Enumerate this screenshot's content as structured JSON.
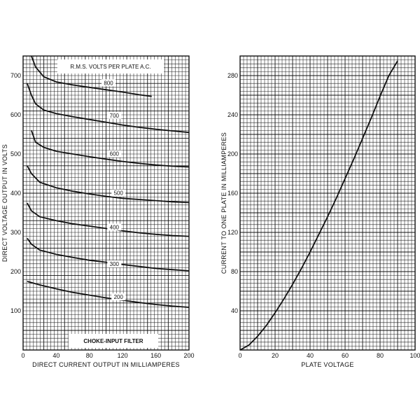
{
  "chart_data": [
    {
      "type": "line",
      "id": "left",
      "xlabel": "DIRECT CURRENT OUTPUT IN MILLIAMPERES",
      "ylabel": "DIRECT VOLTAGE OUTPUT IN VOLTS",
      "xlim": [
        0,
        200
      ],
      "ylim": [
        0,
        750
      ],
      "xticks": [
        0,
        40,
        80,
        120,
        160,
        200
      ],
      "yticks": [
        100,
        200,
        300,
        400,
        500,
        600,
        700
      ],
      "legend_title": "R.M.S. VOLTS PER PLATE A.C.",
      "footer_label": "CHOKE-INPUT FILTER",
      "grid": true,
      "series": [
        {
          "name": "800",
          "label_at": [
            103,
            678
          ],
          "points": [
            [
              10,
              750
            ],
            [
              15,
              722
            ],
            [
              25,
              697
            ],
            [
              40,
              684
            ],
            [
              60,
              676
            ],
            [
              80,
              670
            ],
            [
              100,
              664
            ],
            [
              120,
              658
            ],
            [
              140,
              651
            ],
            [
              155,
              647
            ]
          ]
        },
        {
          "name": "700",
          "label_at": [
            110,
            595
          ],
          "points": [
            [
              5,
              680
            ],
            [
              10,
              650
            ],
            [
              15,
              628
            ],
            [
              25,
              612
            ],
            [
              40,
              603
            ],
            [
              60,
              595
            ],
            [
              80,
              588
            ],
            [
              100,
              581
            ],
            [
              120,
              574
            ],
            [
              140,
              568
            ],
            [
              160,
              563
            ],
            [
              180,
              559
            ],
            [
              200,
              555
            ]
          ]
        },
        {
          "name": "600",
          "label_at": [
            110,
            497
          ],
          "points": [
            [
              10,
              560
            ],
            [
              15,
              530
            ],
            [
              25,
              517
            ],
            [
              40,
              507
            ],
            [
              60,
              500
            ],
            [
              80,
              493
            ],
            [
              100,
              487
            ],
            [
              120,
              481
            ],
            [
              140,
              476
            ],
            [
              160,
              472
            ],
            [
              180,
              469
            ],
            [
              200,
              467
            ]
          ]
        },
        {
          "name": "500",
          "label_at": [
            115,
            397
          ],
          "points": [
            [
              5,
              470
            ],
            [
              10,
              450
            ],
            [
              20,
              428
            ],
            [
              40,
              414
            ],
            [
              60,
              405
            ],
            [
              80,
              398
            ],
            [
              100,
              392
            ],
            [
              120,
              387
            ],
            [
              140,
              384
            ],
            [
              160,
              381
            ],
            [
              180,
              378
            ],
            [
              200,
              376
            ]
          ]
        },
        {
          "name": "400",
          "label_at": [
            110,
            310
          ],
          "points": [
            [
              5,
              375
            ],
            [
              10,
              355
            ],
            [
              20,
              340
            ],
            [
              40,
              330
            ],
            [
              60,
              322
            ],
            [
              80,
              316
            ],
            [
              100,
              310
            ],
            [
              120,
              304
            ],
            [
              140,
              299
            ],
            [
              160,
              295
            ],
            [
              180,
              292
            ],
            [
              200,
              290
            ]
          ]
        },
        {
          "name": "300",
          "label_at": [
            110,
            216
          ],
          "points": [
            [
              5,
              285
            ],
            [
              10,
              270
            ],
            [
              20,
              255
            ],
            [
              40,
              244
            ],
            [
              60,
              236
            ],
            [
              80,
              229
            ],
            [
              100,
              224
            ],
            [
              120,
              218
            ],
            [
              140,
              213
            ],
            [
              160,
              208
            ],
            [
              180,
              205
            ],
            [
              200,
              202
            ]
          ]
        },
        {
          "name": "200",
          "label_at": [
            115,
            132
          ],
          "points": [
            [
              5,
              175
            ],
            [
              20,
              166
            ],
            [
              40,
              156
            ],
            [
              60,
              147
            ],
            [
              80,
              140
            ],
            [
              100,
              133
            ],
            [
              120,
              127
            ],
            [
              140,
              121
            ],
            [
              160,
              116
            ],
            [
              180,
              112
            ],
            [
              200,
              109
            ]
          ]
        }
      ]
    },
    {
      "type": "line",
      "id": "right",
      "xlabel": "PLATE VOLTAGE",
      "ylabel": "CURRENT TO ONE PLATE IN MILLIAMPERES",
      "xlim": [
        0,
        100
      ],
      "ylim": [
        0,
        300
      ],
      "xticks": [
        0,
        20,
        40,
        60,
        80,
        100
      ],
      "yticks": [
        40,
        80,
        120,
        160,
        200,
        240,
        280
      ],
      "grid": true,
      "series": [
        {
          "points": [
            [
              0,
              0
            ],
            [
              5,
              5
            ],
            [
              10,
              14
            ],
            [
              15,
              25
            ],
            [
              20,
              38
            ],
            [
              25,
              52
            ],
            [
              30,
              67
            ],
            [
              35,
              83
            ],
            [
              40,
              100
            ],
            [
              45,
              118
            ],
            [
              50,
              136
            ],
            [
              55,
              155
            ],
            [
              60,
              175
            ],
            [
              65,
              195
            ],
            [
              70,
              216
            ],
            [
              75,
              237
            ],
            [
              80,
              259
            ],
            [
              85,
              280
            ],
            [
              90,
              295
            ]
          ]
        }
      ]
    }
  ]
}
